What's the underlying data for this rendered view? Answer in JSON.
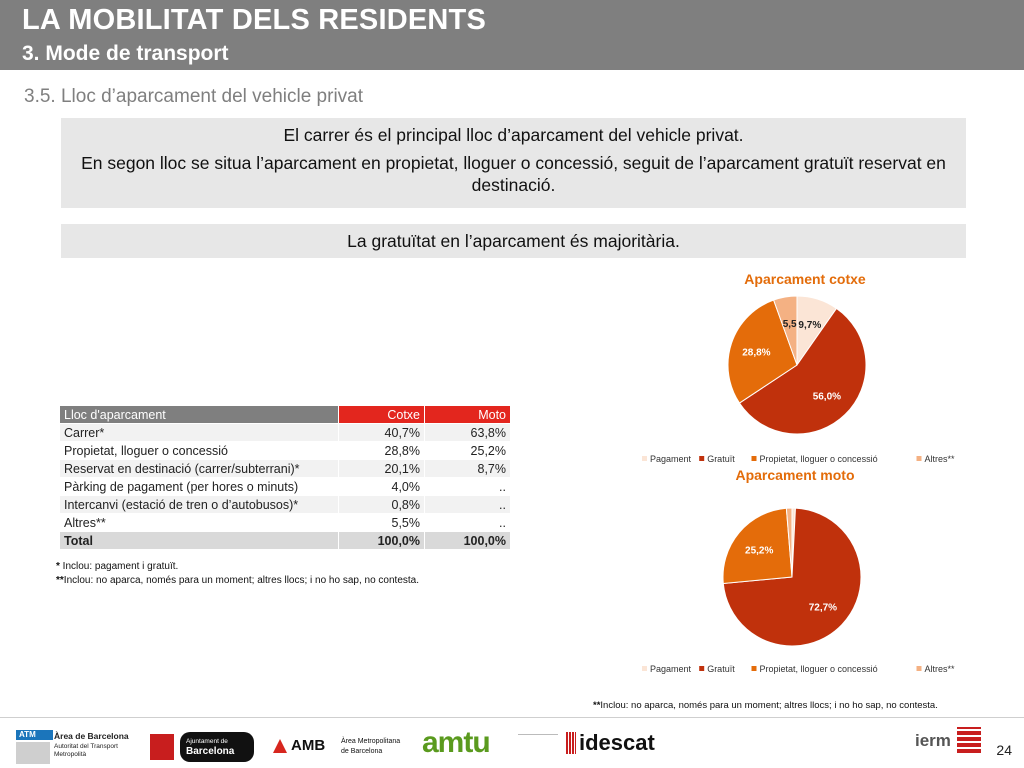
{
  "header": {
    "title": "LA MOBILITAT DELS RESIDENTS",
    "subtitle": "3. Mode de transport"
  },
  "section_title": "3.5. Lloc d’aparcament del vehicle privat",
  "box1": {
    "line1": "El carrer és el principal lloc d’aparcament del vehicle privat.",
    "line2": "En segon lloc se situa l’aparcament en propietat, lloguer o concessió, seguit de l’aparcament gratuït reservat en destinació."
  },
  "box2": {
    "text": "La gratuïtat en l’aparcament és majoritària."
  },
  "table": {
    "headers": [
      "Lloc d'aparcament",
      "Cotxe",
      "Moto"
    ],
    "rows": [
      {
        "label": "Carrer*",
        "cotxe": "40,7%",
        "moto": "63,8%"
      },
      {
        "label": "Propietat, lloguer o concessió",
        "cotxe": "28,8%",
        "moto": "25,2%"
      },
      {
        "label": "Reservat en destinació (carrer/subterrani)*",
        "cotxe": "20,1%",
        "moto": "8,7%"
      },
      {
        "label": "Pàrking de pagament (per hores o minuts)",
        "cotxe": "4,0%",
        "moto": ".."
      },
      {
        "label": "Intercanvi (estació de tren o d’autobusos)*",
        "cotxe": "0,8%",
        "moto": ".."
      },
      {
        "label": "Altres**",
        "cotxe": "5,5%",
        "moto": ".."
      }
    ],
    "total": {
      "label": "Total",
      "cotxe": "100,0%",
      "moto": "100,0%"
    }
  },
  "notes": {
    "note1_mark": "*",
    "note1": " Inclou: pagament i gratuït.",
    "note2_mark": "**",
    "note2": "Inclou: no aparca, només para un moment; altres llocs; i no ho sap, no contesta.",
    "note3_mark": "**",
    "note3": "Inclou: no aparca, només para un moment; altres llocs; i no ho sap, no contesta."
  },
  "chart_data": [
    {
      "type": "pie",
      "title": "Aparcament cotxe",
      "categories": [
        "Pagament",
        "Gratuït",
        "Propietat, lloguer o concessió",
        "Altres**"
      ],
      "values": [
        9.7,
        56.0,
        28.8,
        5.5
      ],
      "labels": [
        "9,7%",
        "56,0%",
        "28,8%",
        "5,5"
      ],
      "colors": [
        "#fbe5d6",
        "#c0310c",
        "#e46c0a",
        "#f4b183"
      ],
      "legend_position": "bottom"
    },
    {
      "type": "pie",
      "title": "Aparcament moto",
      "categories": [
        "Pagament",
        "Gratuït",
        "Propietat, lloguer o concessió",
        "Altres**"
      ],
      "values": [
        0.8,
        72.7,
        25.2,
        1.3
      ],
      "labels": [
        "",
        "72,7%",
        "25,2%",
        ""
      ],
      "colors": [
        "#fbe5d6",
        "#c0310c",
        "#e46c0a",
        "#f4b183"
      ],
      "legend_position": "bottom"
    }
  ],
  "footer": {
    "atm_badge": "ATM",
    "atm_line1": "Àrea de Barcelona",
    "atm_line2": "Autoritat del Transport",
    "atm_line3": "Metropolità",
    "ajuntament_line1": "Ajuntament de",
    "ajuntament_line2": "Barcelona",
    "amb": "AMB",
    "amb_line1": "Àrea Metropolitana",
    "amb_line2": "de Barcelona",
    "amtu": "amtu",
    "idescat": "idescat",
    "iermb": "ierm",
    "page_number": "24"
  }
}
